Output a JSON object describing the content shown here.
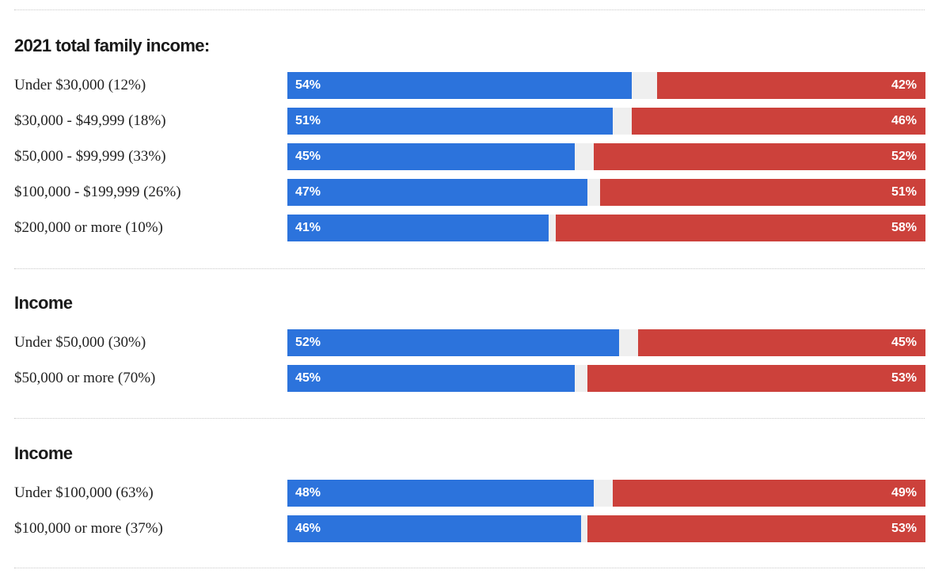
{
  "colors": {
    "dem": "#2c73dc",
    "rep": "#cc413b",
    "track": "#efefef"
  },
  "chart_data": [
    {
      "type": "bar",
      "orientation": "horizontal-stacked",
      "title": "2021 total family income:",
      "xlim": [
        0,
        100
      ],
      "categories": [
        "Under $30,000 (12%)",
        "$30,000 - $49,999 (18%)",
        "$50,000 - $99,999 (33%)",
        "$100,000 - $199,999 (26%)",
        "$200,000 or more (10%)"
      ],
      "series": [
        {
          "values": [
            54,
            51,
            45,
            47,
            41
          ],
          "labels": [
            "54%",
            "51%",
            "45%",
            "47%",
            "41%"
          ],
          "color": "#2c73dc"
        },
        {
          "values": [
            42,
            46,
            52,
            51,
            58
          ],
          "labels": [
            "42%",
            "46%",
            "52%",
            "51%",
            "58%"
          ],
          "color": "#cc413b"
        }
      ]
    },
    {
      "type": "bar",
      "orientation": "horizontal-stacked",
      "title": "Income",
      "xlim": [
        0,
        100
      ],
      "categories": [
        "Under $50,000 (30%)",
        "$50,000 or more (70%)"
      ],
      "series": [
        {
          "values": [
            52,
            45
          ],
          "labels": [
            "52%",
            "45%"
          ],
          "color": "#2c73dc"
        },
        {
          "values": [
            45,
            53
          ],
          "labels": [
            "45%",
            "53%"
          ],
          "color": "#cc413b"
        }
      ]
    },
    {
      "type": "bar",
      "orientation": "horizontal-stacked",
      "title": "Income",
      "xlim": [
        0,
        100
      ],
      "categories": [
        "Under $100,000 (63%)",
        "$100,000 or more (37%)"
      ],
      "series": [
        {
          "values": [
            48,
            46
          ],
          "labels": [
            "48%",
            "46%"
          ],
          "color": "#2c73dc"
        },
        {
          "values": [
            49,
            53
          ],
          "labels": [
            "49%",
            "53%"
          ],
          "color": "#cc413b"
        }
      ]
    }
  ]
}
